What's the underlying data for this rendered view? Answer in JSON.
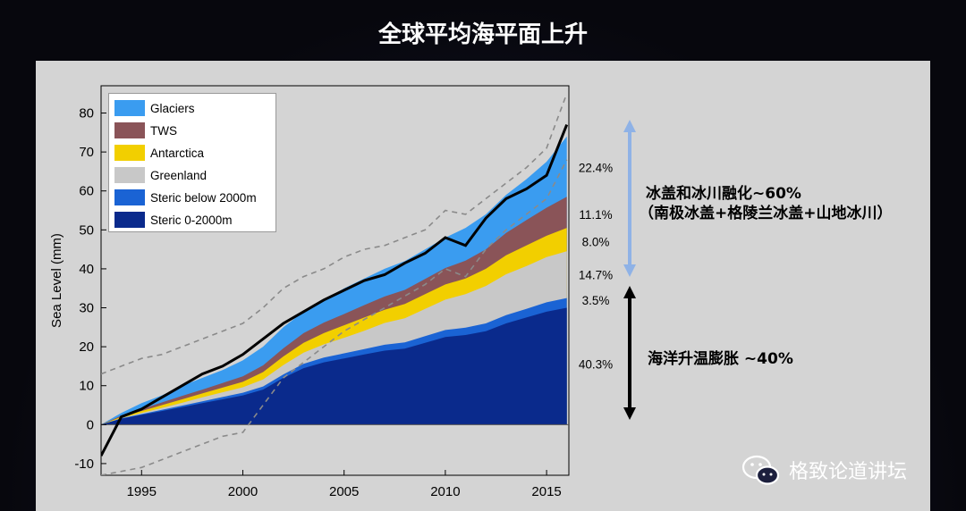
{
  "title": "全球平均海平面上升",
  "chart_data": {
    "type": "area",
    "ylabel": "Sea Level (mm)",
    "xlabel": "",
    "xlim": [
      1993,
      2016.1
    ],
    "ylim": [
      -13,
      87
    ],
    "x_ticks": [
      "1995",
      "2000",
      "2005",
      "2010",
      "2015"
    ],
    "y_ticks": [
      "-10",
      "0",
      "10",
      "20",
      "30",
      "40",
      "50",
      "60",
      "70",
      "80"
    ],
    "x": [
      1993,
      1994,
      1995,
      1996,
      1997,
      1998,
      1999,
      2000,
      2001,
      2002,
      2003,
      2004,
      2005,
      2006,
      2007,
      2008,
      2009,
      2010,
      2011,
      2012,
      2013,
      2014,
      2015,
      2016
    ],
    "series": [
      {
        "name": "Steric 0-2000m",
        "color": "#0a2a8c",
        "cumulative": [
          0,
          1.5,
          2.5,
          3.5,
          4.5,
          5.5,
          6.5,
          7.5,
          9,
          12,
          14.5,
          16,
          17,
          18,
          19,
          19.5,
          21,
          22.5,
          23,
          24,
          26,
          27.5,
          29,
          30
        ]
      },
      {
        "name": "Steric below 2000m",
        "color": "#1a63d4",
        "cumulative": [
          0,
          1.6,
          2.7,
          3.8,
          4.9,
          6.0,
          7.1,
          8.2,
          9.8,
          12.9,
          15.6,
          17.2,
          18.3,
          19.4,
          20.5,
          21.1,
          22.7,
          24.3,
          24.9,
          26.0,
          28.1,
          29.7,
          31.4,
          32.5
        ]
      },
      {
        "name": "Greenland",
        "color": "#c8c8c8",
        "cumulative": [
          0,
          1.7,
          3.0,
          4.3,
          5.6,
          7.0,
          8.3,
          9.6,
          11.6,
          15.3,
          18.5,
          20.6,
          22.3,
          24.1,
          26.1,
          27.3,
          29.7,
          32.1,
          33.5,
          35.6,
          38.6,
          40.7,
          43.0,
          44.5
        ]
      },
      {
        "name": "Antarctica",
        "color": "#f2cf00",
        "cumulative": [
          0,
          2.0,
          3.5,
          5.0,
          6.5,
          8.0,
          9.5,
          11.0,
          13.5,
          17.5,
          21.0,
          23.5,
          25.5,
          27.5,
          29.5,
          31.0,
          33.5,
          36.0,
          37.5,
          40.0,
          43.5,
          46.0,
          48.5,
          50.5
        ]
      },
      {
        "name": "TWS",
        "color": "#8a5458",
        "cumulative": [
          0,
          2.3,
          4.0,
          5.7,
          7.4,
          9.0,
          10.7,
          12.4,
          15.2,
          19.6,
          23.5,
          26.2,
          28.4,
          30.7,
          32.9,
          34.6,
          37.4,
          40.2,
          42.1,
          45.0,
          49.2,
          52.5,
          55.7,
          58.5
        ]
      },
      {
        "name": "Glaciers",
        "color": "#3a9cf0",
        "cumulative": [
          0,
          3.0,
          5.5,
          7.5,
          10,
          12,
          14,
          16.5,
          20,
          25,
          29,
          32,
          35,
          37.5,
          40,
          42,
          45,
          48,
          50.5,
          54,
          59,
          63,
          67.5,
          74
        ]
      }
    ],
    "observed_gmsl": [
      -8,
      2,
      4,
      7,
      10,
      13,
      15,
      18,
      22,
      26,
      29,
      32,
      34.5,
      37,
      38.5,
      41.5,
      44,
      48,
      46,
      53,
      58,
      60.5,
      64,
      77
    ],
    "uncertainty_upper": [
      13,
      15,
      17,
      18,
      20,
      22,
      24,
      26,
      30,
      35,
      38,
      40,
      43,
      45,
      46,
      48,
      50,
      55,
      54,
      58,
      62,
      66,
      71,
      85
    ],
    "uncertainty_lower": [
      -13,
      -12,
      -11,
      -9,
      -7,
      -5,
      -3,
      -2,
      5,
      12,
      16,
      20,
      24,
      27,
      30,
      33,
      36,
      40,
      38,
      45,
      50,
      54,
      58,
      68
    ],
    "legend": [
      "Glaciers",
      "TWS",
      "Antarctica",
      "Greenland",
      "Steric below 2000m",
      "Steric 0-2000m"
    ],
    "percent_labels": [
      "22.4%",
      "11.1%",
      "8.0%",
      "14.7%",
      "3.5%",
      "40.3%"
    ]
  },
  "annotations": {
    "ice_line1": "冰盖和冰川融化~60%",
    "ice_line2": "（南极冰盖+格陵兰冰盖+山地冰川）",
    "ocean_line": "海洋升温膨胀 ~40%",
    "ice_arrow_color": "#8fb2e6",
    "ocean_arrow_color": "#000000"
  },
  "watermark": "格致论道讲坛"
}
